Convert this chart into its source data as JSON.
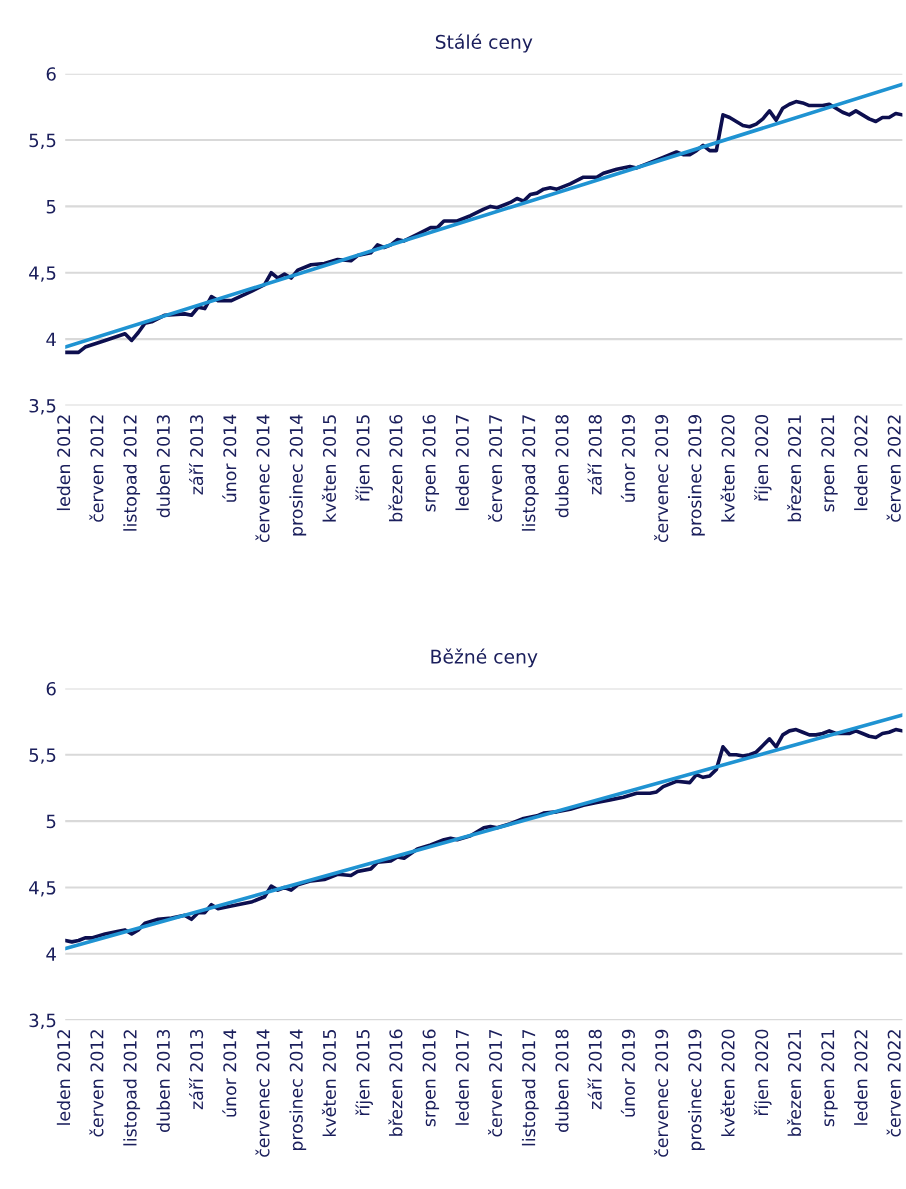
{
  "chart_data": [
    {
      "type": "line",
      "title": "Stálé ceny",
      "xticks": [
        {
          "value": "2012-01",
          "label": "leden 2012"
        },
        {
          "value": "2012-06",
          "label": "červen 2012"
        },
        {
          "value": "2012-11",
          "label": "listopad 2012"
        },
        {
          "value": "2013-04",
          "label": "duben 2013"
        },
        {
          "value": "2013-09",
          "label": "září 2013"
        },
        {
          "value": "2014-02",
          "label": "únor 2014"
        },
        {
          "value": "2014-07",
          "label": "červenec 2014"
        },
        {
          "value": "2014-12",
          "label": "prosinec 2014"
        },
        {
          "value": "2015-05",
          "label": "květen 2015"
        },
        {
          "value": "2015-10",
          "label": "říjen 2015"
        },
        {
          "value": "2016-03",
          "label": "březen 2016"
        },
        {
          "value": "2016-08",
          "label": "srpen 2016"
        },
        {
          "value": "2017-01",
          "label": "leden 2017"
        },
        {
          "value": "2017-06",
          "label": "červen 2017"
        },
        {
          "value": "2017-11",
          "label": "listopad 2017"
        },
        {
          "value": "2018-04",
          "label": "duben 2018"
        },
        {
          "value": "2018-09",
          "label": "září 2018"
        },
        {
          "value": "2019-02",
          "label": "únor 2019"
        },
        {
          "value": "2019-07",
          "label": "červenec 2019"
        },
        {
          "value": "2019-12",
          "label": "prosinec 2019"
        },
        {
          "value": "2020-05",
          "label": "květen 2020"
        },
        {
          "value": "2020-10",
          "label": "říjen 2020"
        },
        {
          "value": "2021-03",
          "label": "březen 2021"
        },
        {
          "value": "2021-08",
          "label": "srpen 2021"
        },
        {
          "value": "2022-01",
          "label": "leden 2022"
        },
        {
          "value": "2022-06",
          "label": "červen 2022"
        }
      ],
      "xlim": [
        "2012-01",
        "2022-07"
      ],
      "ylim": [
        3.5,
        6
      ],
      "yticks": [
        {
          "value": 3.5,
          "label": "3,5"
        },
        4,
        {
          "value": 4.5,
          "label": "4,5"
        },
        5,
        {
          "value": 5.5,
          "label": "5,5"
        },
        6
      ],
      "grid": "y",
      "marker": "none",
      "line_style": "solid",
      "series": [
        {
          "type": "line",
          "color": "#0d0f4f",
          "x": [
            "2012-01",
            "2012-03",
            "2012-04",
            "2012-07",
            "2012-10",
            "2012-11",
            "2012-12",
            "2013-01",
            "2013-02",
            "2013-04",
            "2013-07",
            "2013-08",
            "2013-09",
            "2013-10",
            "2013-11",
            "2013-12",
            "2014-02",
            "2014-05",
            "2014-07",
            "2014-08",
            "2014-09",
            "2014-10",
            "2014-11",
            "2014-12",
            "2015-02",
            "2015-04",
            "2015-06",
            "2015-08",
            "2015-09",
            "2015-11",
            "2015-12",
            "2016-01",
            "2016-02",
            "2016-03",
            "2016-04",
            "2016-06",
            "2016-08",
            "2016-09",
            "2016-10",
            "2016-12",
            "2017-02",
            "2017-04",
            "2017-05",
            "2017-06",
            "2017-08",
            "2017-09",
            "2017-10",
            "2017-11",
            "2017-12",
            "2018-01",
            "2018-02",
            "2018-03",
            "2018-05",
            "2018-07",
            "2018-08",
            "2018-09",
            "2018-10",
            "2018-12",
            "2019-02",
            "2019-03",
            "2019-05",
            "2019-07",
            "2019-09",
            "2019-10",
            "2019-11",
            "2019-12",
            "2020-01",
            "2020-02",
            "2020-03",
            "2020-04",
            "2020-05",
            "2020-06",
            "2020-07",
            "2020-08",
            "2020-09",
            "2020-10",
            "2020-11",
            "2020-12",
            "2021-01",
            "2021-02",
            "2021-03",
            "2021-04",
            "2021-05",
            "2021-06",
            "2021-07",
            "2021-08",
            "2021-09",
            "2021-10",
            "2021-11",
            "2021-12",
            "2022-01",
            "2022-02",
            "2022-03",
            "2022-04",
            "2022-05",
            "2022-06",
            "2022-07"
          ],
          "values": [
            3.9,
            3.9,
            3.94,
            3.99,
            4.04,
            3.99,
            4.05,
            4.12,
            4.13,
            4.18,
            4.19,
            4.18,
            4.24,
            4.23,
            4.32,
            4.29,
            4.29,
            4.36,
            4.41,
            4.5,
            4.46,
            4.49,
            4.46,
            4.52,
            4.56,
            4.57,
            4.6,
            4.59,
            4.63,
            4.65,
            4.71,
            4.69,
            4.71,
            4.75,
            4.74,
            4.79,
            4.84,
            4.84,
            4.89,
            4.89,
            4.93,
            4.98,
            5.0,
            4.99,
            5.03,
            5.06,
            5.04,
            5.09,
            5.1,
            5.13,
            5.14,
            5.13,
            5.17,
            5.22,
            5.22,
            5.22,
            5.25,
            5.28,
            5.3,
            5.29,
            5.33,
            5.37,
            5.41,
            5.39,
            5.39,
            5.42,
            5.46,
            5.42,
            5.42,
            5.69,
            5.67,
            5.64,
            5.61,
            5.6,
            5.62,
            5.66,
            5.72,
            5.65,
            5.74,
            5.77,
            5.79,
            5.78,
            5.76,
            5.76,
            5.76,
            5.77,
            5.74,
            5.71,
            5.69,
            5.72,
            5.69,
            5.66,
            5.64,
            5.67,
            5.67,
            5.7,
            5.69
          ]
        },
        {
          "color": "#1f93d2",
          "x": [
            "2012-01",
            "2022-07"
          ],
          "values": [
            3.94,
            5.92
          ]
        }
      ]
    },
    {
      "type": "line",
      "title": "Běžné ceny",
      "xticks": [
        {
          "value": "2012-01",
          "label": "leden 2012"
        },
        {
          "value": "2012-06",
          "label": "červen 2012"
        },
        {
          "value": "2012-11",
          "label": "listopad 2012"
        },
        {
          "value": "2013-04",
          "label": "duben 2013"
        },
        {
          "value": "2013-09",
          "label": "září 2013"
        },
        {
          "value": "2014-02",
          "label": "únor 2014"
        },
        {
          "value": "2014-07",
          "label": "červenec 2014"
        },
        {
          "value": "2014-12",
          "label": "prosinec 2014"
        },
        {
          "value": "2015-05",
          "label": "květen 2015"
        },
        {
          "value": "2015-10",
          "label": "říjen 2015"
        },
        {
          "value": "2016-03",
          "label": "březen 2016"
        },
        {
          "value": "2016-08",
          "label": "srpen 2016"
        },
        {
          "value": "2017-01",
          "label": "leden 2017"
        },
        {
          "value": "2017-06",
          "label": "červen 2017"
        },
        {
          "value": "2017-11",
          "label": "listopad 2017"
        },
        {
          "value": "2018-04",
          "label": "duben 2018"
        },
        {
          "value": "2018-09",
          "label": "září 2018"
        },
        {
          "value": "2019-02",
          "label": "únor 2019"
        },
        {
          "value": "2019-07",
          "label": "červenec 2019"
        },
        {
          "value": "2019-12",
          "label": "prosinec 2019"
        },
        {
          "value": "2020-05",
          "label": "květen 2020"
        },
        {
          "value": "2020-10",
          "label": "říjen 2020"
        },
        {
          "value": "2021-03",
          "label": "březen 2021"
        },
        {
          "value": "2021-08",
          "label": "srpen 2021"
        },
        {
          "value": "2022-01",
          "label": "leden 2022"
        },
        {
          "value": "2022-06",
          "label": "červen 2022"
        }
      ],
      "xlim": [
        "2012-01",
        "2022-07"
      ],
      "ylim": [
        3.5,
        6
      ],
      "yticks": [
        {
          "value": 3.5,
          "label": "3,5"
        },
        4,
        {
          "value": 4.5,
          "label": "4,5"
        },
        5,
        {
          "value": 5.5,
          "label": "5,5"
        },
        6
      ],
      "grid": "y",
      "marker": "none",
      "line_style": "solid",
      "series": [
        {
          "type": "line",
          "color": "#0d0f4f",
          "x": [
            "2012-01",
            "2012-02",
            "2012-03",
            "2012-04",
            "2012-05",
            "2012-07",
            "2012-09",
            "2012-10",
            "2012-11",
            "2012-12",
            "2013-01",
            "2013-03",
            "2013-05",
            "2013-07",
            "2013-08",
            "2013-09",
            "2013-10",
            "2013-11",
            "2013-12",
            "2014-02",
            "2014-05",
            "2014-07",
            "2014-08",
            "2014-09",
            "2014-10",
            "2014-11",
            "2014-12",
            "2015-02",
            "2015-04",
            "2015-06",
            "2015-08",
            "2015-09",
            "2015-11",
            "2015-12",
            "2016-02",
            "2016-03",
            "2016-04",
            "2016-06",
            "2016-08",
            "2016-10",
            "2016-11",
            "2016-12",
            "2017-02",
            "2017-04",
            "2017-05",
            "2017-06",
            "2017-08",
            "2017-10",
            "2017-12",
            "2018-01",
            "2018-03",
            "2018-05",
            "2018-07",
            "2018-09",
            "2018-11",
            "2019-01",
            "2019-03",
            "2019-05",
            "2019-06",
            "2019-07",
            "2019-09",
            "2019-11",
            "2019-12",
            "2020-01",
            "2020-02",
            "2020-03",
            "2020-04",
            "2020-05",
            "2020-06",
            "2020-07",
            "2020-08",
            "2020-09",
            "2020-10",
            "2020-11",
            "2020-12",
            "2021-01",
            "2021-02",
            "2021-03",
            "2021-04",
            "2021-05",
            "2021-06",
            "2021-07",
            "2021-08",
            "2021-09",
            "2021-10",
            "2021-11",
            "2021-12",
            "2022-01",
            "2022-02",
            "2022-03",
            "2022-04",
            "2022-05",
            "2022-06",
            "2022-07"
          ],
          "values": [
            4.1,
            4.09,
            4.1,
            4.12,
            4.12,
            4.15,
            4.17,
            4.18,
            4.15,
            4.18,
            4.23,
            4.26,
            4.27,
            4.29,
            4.26,
            4.31,
            4.31,
            4.37,
            4.34,
            4.36,
            4.39,
            4.43,
            4.51,
            4.48,
            4.5,
            4.48,
            4.52,
            4.55,
            4.56,
            4.6,
            4.59,
            4.62,
            4.64,
            4.69,
            4.7,
            4.73,
            4.72,
            4.79,
            4.82,
            4.86,
            4.87,
            4.86,
            4.89,
            4.95,
            4.96,
            4.95,
            4.98,
            5.02,
            5.04,
            5.06,
            5.07,
            5.09,
            5.12,
            5.14,
            5.16,
            5.18,
            5.21,
            5.21,
            5.22,
            5.26,
            5.3,
            5.29,
            5.35,
            5.33,
            5.34,
            5.39,
            5.56,
            5.5,
            5.5,
            5.49,
            5.5,
            5.52,
            5.57,
            5.62,
            5.56,
            5.65,
            5.68,
            5.69,
            5.67,
            5.65,
            5.65,
            5.66,
            5.68,
            5.66,
            5.66,
            5.66,
            5.68,
            5.66,
            5.64,
            5.63,
            5.66,
            5.67,
            5.69,
            5.68
          ]
        },
        {
          "color": "#1f93d2",
          "x": [
            "2012-01",
            "2022-07"
          ],
          "values": [
            4.04,
            5.8
          ]
        }
      ]
    }
  ]
}
